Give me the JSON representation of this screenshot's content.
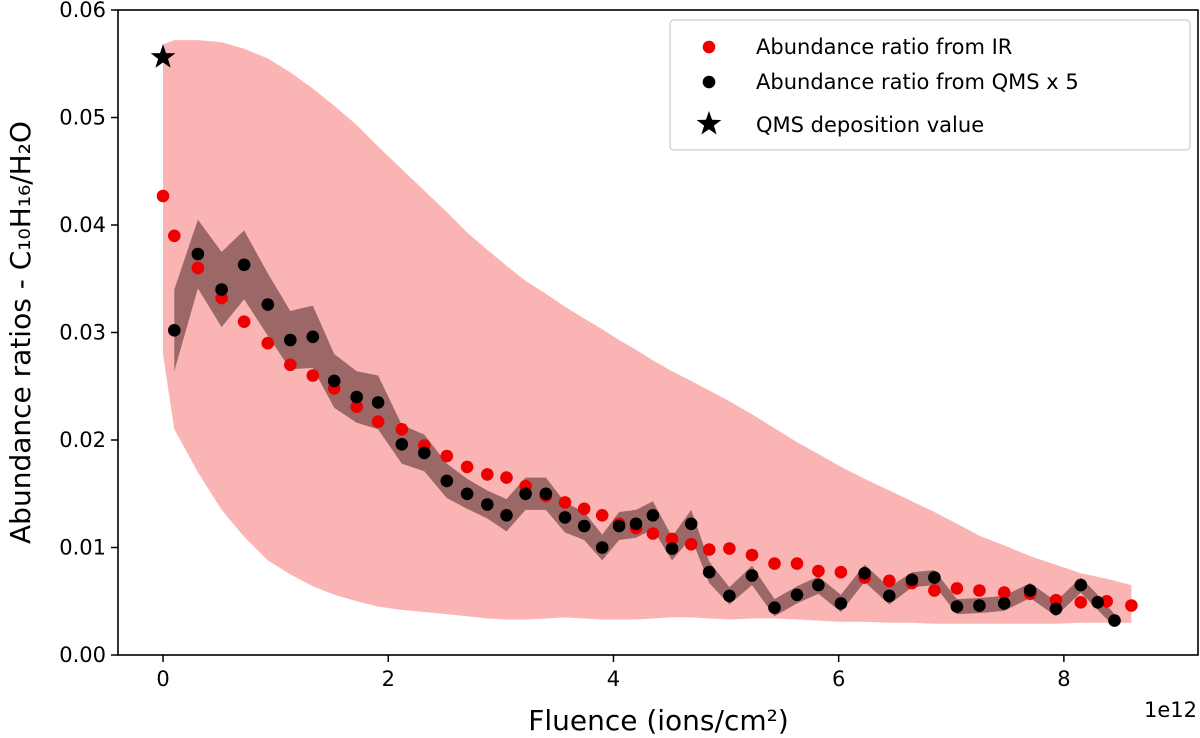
{
  "chart_data": {
    "type": "scatter",
    "title": "",
    "xlabel": "Fluence (ions/cm²)",
    "ylabel": "Abundance ratios - C₁₀H₁₆/H₂O",
    "x_offset_label": "1e12",
    "xlim": [
      -0.4,
      9.2
    ],
    "ylim": [
      0,
      0.06
    ],
    "xticks": [
      0,
      2,
      4,
      6,
      8
    ],
    "xtick_labels": [
      "0",
      "2",
      "4",
      "6",
      "8"
    ],
    "yticks": [
      0,
      0.01,
      0.02,
      0.03,
      0.04,
      0.05,
      0.06
    ],
    "ytick_labels": [
      "0.00",
      "0.01",
      "0.02",
      "0.03",
      "0.04",
      "0.05",
      "0.06"
    ],
    "grid": false,
    "legend_position": "top-right",
    "colors": {
      "ir": "#ee0000",
      "ir_band": "#fbb4b4",
      "qms": "#000000",
      "qms_band": "#8a5959"
    },
    "series": [
      {
        "name": "Abundance ratio from IR",
        "marker": "circle",
        "color": "#ee0000",
        "x": [
          0,
          0.1,
          0.31,
          0.52,
          0.72,
          0.93,
          1.13,
          1.33,
          1.52,
          1.72,
          1.91,
          2.12,
          2.32,
          2.52,
          2.7,
          2.88,
          3.05,
          3.22,
          3.4,
          3.57,
          3.74,
          3.9,
          4.05,
          4.2,
          4.35,
          4.52,
          4.69,
          4.85,
          5.03,
          5.23,
          5.43,
          5.63,
          5.82,
          6.02,
          6.23,
          6.45,
          6.65,
          6.85,
          7.05,
          7.25,
          7.47,
          7.7,
          7.93,
          8.15,
          8.38,
          8.6
        ],
        "y": [
          0.0427,
          0.039,
          0.036,
          0.0332,
          0.031,
          0.029,
          0.027,
          0.026,
          0.0248,
          0.0231,
          0.0217,
          0.021,
          0.0195,
          0.0185,
          0.0175,
          0.0168,
          0.0165,
          0.0157,
          0.0148,
          0.0142,
          0.0136,
          0.013,
          0.0122,
          0.0118,
          0.0113,
          0.0108,
          0.0103,
          0.0098,
          0.0099,
          0.0093,
          0.0085,
          0.0085,
          0.0078,
          0.0077,
          0.0072,
          0.0069,
          0.0067,
          0.006,
          0.0062,
          0.006,
          0.0058,
          0.0057,
          0.0051,
          0.0049,
          0.005,
          0.0046
        ],
        "band_upper": [
          0.0568,
          0.0572,
          0.0572,
          0.057,
          0.0564,
          0.0555,
          0.0542,
          0.0527,
          0.0511,
          0.0493,
          0.0473,
          0.0452,
          0.0432,
          0.0412,
          0.0393,
          0.0377,
          0.0362,
          0.0348,
          0.0336,
          0.0324,
          0.0313,
          0.0303,
          0.0293,
          0.0284,
          0.0274,
          0.0264,
          0.0255,
          0.0246,
          0.0236,
          0.0224,
          0.0211,
          0.0198,
          0.0187,
          0.0175,
          0.0164,
          0.0153,
          0.0143,
          0.0133,
          0.0122,
          0.0111,
          0.0102,
          0.0092,
          0.0084,
          0.0076,
          0.0071,
          0.0065
        ],
        "band_lower": [
          0.028,
          0.021,
          0.017,
          0.0135,
          0.011,
          0.0088,
          0.0075,
          0.0064,
          0.0056,
          0.005,
          0.0045,
          0.0042,
          0.004,
          0.0038,
          0.0036,
          0.0034,
          0.0033,
          0.0033,
          0.0034,
          0.0035,
          0.0034,
          0.0033,
          0.0033,
          0.0033,
          0.0034,
          0.0035,
          0.0035,
          0.0034,
          0.0033,
          0.0034,
          0.0034,
          0.0033,
          0.0032,
          0.0031,
          0.0031,
          0.003,
          0.003,
          0.0029,
          0.0029,
          0.0029,
          0.0029,
          0.0029,
          0.0029,
          0.003,
          0.003,
          0.003
        ]
      },
      {
        "name": "Abundance ratio from QMS x 5",
        "marker": "circle",
        "color": "#000000",
        "x": [
          0.1,
          0.31,
          0.52,
          0.72,
          0.93,
          1.13,
          1.33,
          1.52,
          1.72,
          1.91,
          2.12,
          2.32,
          2.52,
          2.7,
          2.88,
          3.05,
          3.22,
          3.4,
          3.57,
          3.74,
          3.9,
          4.05,
          4.2,
          4.35,
          4.52,
          4.69,
          4.85,
          5.03,
          5.23,
          5.43,
          5.63,
          5.82,
          6.02,
          6.23,
          6.45,
          6.65,
          6.85,
          7.05,
          7.25,
          7.47,
          7.7,
          7.93,
          8.15,
          8.3,
          8.45
        ],
        "y": [
          0.0302,
          0.0373,
          0.034,
          0.0363,
          0.0326,
          0.0293,
          0.0296,
          0.0255,
          0.024,
          0.0235,
          0.0196,
          0.0188,
          0.0162,
          0.015,
          0.014,
          0.013,
          0.015,
          0.015,
          0.0128,
          0.012,
          0.01,
          0.012,
          0.0122,
          0.013,
          0.0099,
          0.0122,
          0.0077,
          0.0055,
          0.0074,
          0.0044,
          0.0056,
          0.0065,
          0.0048,
          0.0076,
          0.0055,
          0.007,
          0.0072,
          0.0045,
          0.0046,
          0.0048,
          0.006,
          0.0043,
          0.0065,
          0.0049,
          0.0032
        ],
        "band_upper": [
          0.034,
          0.0405,
          0.0375,
          0.0395,
          0.0355,
          0.032,
          0.0325,
          0.028,
          0.0264,
          0.026,
          0.0214,
          0.0205,
          0.0178,
          0.0164,
          0.0153,
          0.0145,
          0.0165,
          0.0165,
          0.0142,
          0.0133,
          0.0112,
          0.0133,
          0.0135,
          0.0143,
          0.011,
          0.0135,
          0.0087,
          0.0063,
          0.0083,
          0.0052,
          0.0064,
          0.0073,
          0.0056,
          0.0084,
          0.0063,
          0.0077,
          0.0079,
          0.0052,
          0.0053,
          0.0055,
          0.0067,
          0.005,
          0.0072,
          0.0056,
          0.0038
        ],
        "band_lower": [
          0.0264,
          0.0341,
          0.0305,
          0.0331,
          0.0297,
          0.0266,
          0.0267,
          0.023,
          0.0216,
          0.021,
          0.0178,
          0.0171,
          0.0146,
          0.0136,
          0.0127,
          0.0115,
          0.0135,
          0.0135,
          0.0114,
          0.0107,
          0.0088,
          0.0107,
          0.0109,
          0.0117,
          0.0088,
          0.0109,
          0.0067,
          0.0047,
          0.0065,
          0.0036,
          0.0048,
          0.0057,
          0.004,
          0.0068,
          0.0047,
          0.0063,
          0.0065,
          0.0038,
          0.0039,
          0.0041,
          0.0053,
          0.0036,
          0.0058,
          0.0042,
          0.0026
        ]
      },
      {
        "name": "QMS deposition value",
        "marker": "star",
        "color": "#000000",
        "x": [
          0.0
        ],
        "y": [
          0.0556
        ]
      }
    ]
  }
}
